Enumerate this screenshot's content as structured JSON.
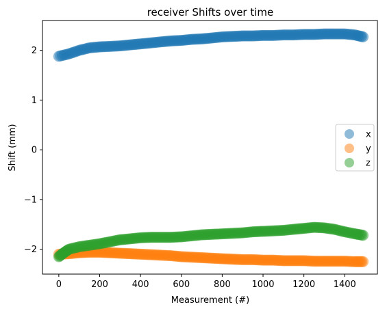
{
  "chart_data": {
    "type": "scatter",
    "title": "receiver Shifts over time",
    "xlabel": "Measurement (#)",
    "ylabel": "Shift (mm)",
    "xlim": [
      -80,
      1560
    ],
    "ylim": [
      -2.5,
      2.6
    ],
    "xticks": [
      0,
      200,
      400,
      600,
      800,
      1000,
      1200,
      1400
    ],
    "xtick_labels": [
      "0",
      "200",
      "400",
      "600",
      "800",
      "1000",
      "1200",
      "1400"
    ],
    "yticks": [
      -2,
      -1,
      0,
      1,
      2
    ],
    "ytick_labels": [
      "−2",
      "−1",
      "0",
      "1",
      "2"
    ],
    "grid": false,
    "legend_position": "center-right",
    "series": [
      {
        "name": "x",
        "color": "#1f77b4",
        "x": [
          0,
          50,
          100,
          150,
          200,
          250,
          300,
          350,
          400,
          450,
          500,
          550,
          600,
          650,
          700,
          750,
          800,
          850,
          900,
          950,
          1000,
          1050,
          1100,
          1150,
          1200,
          1250,
          1300,
          1350,
          1400,
          1450,
          1490
        ],
        "y": [
          1.88,
          1.93,
          2.0,
          2.05,
          2.07,
          2.08,
          2.09,
          2.11,
          2.13,
          2.15,
          2.17,
          2.19,
          2.2,
          2.22,
          2.23,
          2.25,
          2.27,
          2.28,
          2.29,
          2.29,
          2.3,
          2.3,
          2.31,
          2.31,
          2.32,
          2.32,
          2.33,
          2.33,
          2.33,
          2.31,
          2.27
        ]
      },
      {
        "name": "y",
        "color": "#ff7f0e",
        "x": [
          0,
          50,
          100,
          150,
          200,
          250,
          300,
          350,
          400,
          450,
          500,
          550,
          600,
          650,
          700,
          750,
          800,
          850,
          900,
          950,
          1000,
          1050,
          1100,
          1150,
          1200,
          1250,
          1300,
          1350,
          1400,
          1450,
          1490
        ],
        "y": [
          -2.1,
          -2.09,
          -2.07,
          -2.06,
          -2.06,
          -2.07,
          -2.08,
          -2.09,
          -2.1,
          -2.11,
          -2.12,
          -2.13,
          -2.15,
          -2.16,
          -2.17,
          -2.18,
          -2.19,
          -2.2,
          -2.21,
          -2.21,
          -2.22,
          -2.22,
          -2.23,
          -2.23,
          -2.23,
          -2.24,
          -2.24,
          -2.24,
          -2.24,
          -2.25,
          -2.25
        ]
      },
      {
        "name": "z",
        "color": "#2ca02c",
        "x": [
          0,
          25,
          50,
          100,
          150,
          200,
          250,
          300,
          350,
          400,
          450,
          500,
          550,
          600,
          650,
          700,
          750,
          800,
          850,
          900,
          950,
          1000,
          1050,
          1100,
          1150,
          1200,
          1250,
          1300,
          1350,
          1400,
          1450,
          1490
        ],
        "y": [
          -2.15,
          -2.07,
          -2.0,
          -1.95,
          -1.92,
          -1.89,
          -1.85,
          -1.81,
          -1.79,
          -1.77,
          -1.76,
          -1.76,
          -1.76,
          -1.75,
          -1.73,
          -1.71,
          -1.7,
          -1.69,
          -1.68,
          -1.67,
          -1.65,
          -1.64,
          -1.63,
          -1.62,
          -1.6,
          -1.58,
          -1.56,
          -1.57,
          -1.6,
          -1.65,
          -1.69,
          -1.72
        ]
      }
    ]
  }
}
